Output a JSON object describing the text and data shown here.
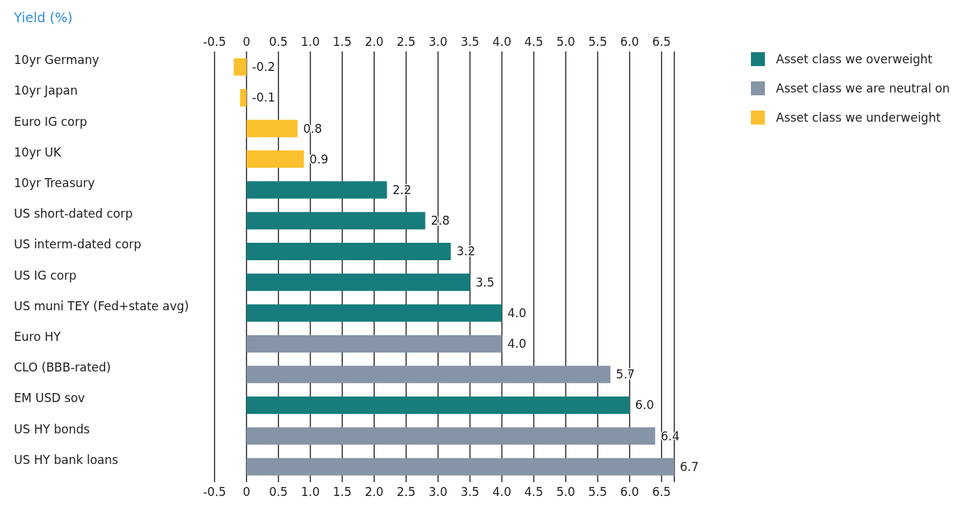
{
  "chart_data": {
    "type": "bar",
    "orientation": "horizontal",
    "stacked": true,
    "xlabel": "Yield (%)",
    "categories": [
      "10yr Germany",
      "10yr Japan",
      "Euro IG corp",
      "10yr UK",
      "10yr Treasury",
      "US short-dated corp",
      "US interm-dated corp",
      "US IG corp",
      "US muni TEY (Fed+state avg)",
      "Euro HY",
      "CLO (BBB-rated)",
      "EM USD sov",
      "US HY bonds",
      "US HY bank loans"
    ],
    "series": [
      {
        "name": "Asset class we overweight",
        "color": "#177c7c",
        "values": [
          null,
          null,
          null,
          null,
          2.2,
          2.8,
          3.2,
          3.5,
          4.0,
          null,
          null,
          6.0,
          null,
          null
        ],
        "value_labels": [
          null,
          null,
          null,
          null,
          "2.2",
          "2.8",
          "3.2",
          "3.5",
          "4.0",
          null,
          null,
          "6.0",
          null,
          null
        ]
      },
      {
        "name": "Asset class we are neutral on",
        "color": "#8594a6",
        "values": [
          null,
          null,
          null,
          null,
          null,
          null,
          null,
          null,
          null,
          4.0,
          5.7,
          null,
          6.4,
          6.7
        ],
        "value_labels": [
          null,
          null,
          null,
          null,
          null,
          null,
          null,
          null,
          null,
          "4.0",
          "5.7",
          null,
          "6.4",
          "6.7"
        ]
      },
      {
        "name": "Asset class we underweight",
        "color": "#fbc02d",
        "values": [
          -0.2,
          -0.1,
          0.8,
          0.9,
          null,
          null,
          null,
          null,
          null,
          null,
          null,
          null,
          null,
          null
        ],
        "value_labels": [
          "-0.2",
          "-0.1",
          "0.8",
          "0.9",
          null,
          null,
          null,
          null,
          null,
          null,
          null,
          null,
          null,
          null
        ]
      }
    ],
    "xlim": [
      -0.5,
      6.7
    ],
    "xticks": [
      {
        "value": -0.5,
        "label": "-0.5"
      },
      0,
      {
        "value": 0.5,
        "label": "0.5"
      },
      {
        "value": 1,
        "label": "1.0"
      },
      {
        "value": 1.5,
        "label": "1.5"
      },
      {
        "value": 2,
        "label": "2.0"
      },
      {
        "value": 2.5,
        "label": "2.5"
      },
      {
        "value": 3,
        "label": "3.0"
      },
      {
        "value": 3.5,
        "label": "3.5"
      },
      {
        "value": 4,
        "label": "4.0"
      },
      {
        "value": 4.5,
        "label": "4.5"
      },
      {
        "value": 5,
        "label": "5.0"
      },
      {
        "value": 5.5,
        "label": "5.5"
      },
      {
        "value": 6,
        "label": "6.0"
      },
      {
        "value": 6.5,
        "label": "6.5"
      }
    ],
    "x2lim": [
      -0.5,
      6.7
    ],
    "x2ticks": [
      {
        "value": -0.5,
        "label": "-0.5"
      },
      0,
      {
        "value": 0.5,
        "label": "0.5"
      },
      {
        "value": 1,
        "label": "1.0"
      },
      {
        "value": 1.5,
        "label": "1.5"
      },
      {
        "value": 2,
        "label": "2.0"
      },
      {
        "value": 2.5,
        "label": "2.5"
      },
      {
        "value": 3,
        "label": "3.0"
      },
      {
        "value": 3.5,
        "label": "3.5"
      },
      {
        "value": 4,
        "label": "4.0"
      },
      {
        "value": 4.5,
        "label": "4.5"
      },
      {
        "value": 5,
        "label": "5.0"
      },
      {
        "value": 5.5,
        "label": "5.5"
      },
      {
        "value": 6,
        "label": "6.0"
      },
      {
        "value": 6.5,
        "label": "6.5"
      }
    ],
    "grid": "x",
    "legend": "right"
  }
}
